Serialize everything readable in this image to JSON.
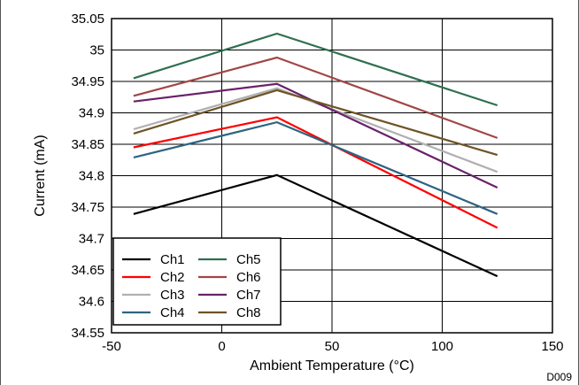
{
  "chart_data": {
    "type": "line",
    "xlabel": "Ambient Temperature (°C)",
    "ylabel": "Current (mA)",
    "xlim": [
      -50,
      150
    ],
    "ylim": [
      34.55,
      35.05
    ],
    "xticks": [
      -50,
      0,
      50,
      100,
      150
    ],
    "xtick_labels": [
      "-50",
      "0",
      "50",
      "100",
      "150"
    ],
    "yticks": [
      34.55,
      34.6,
      34.65,
      34.7,
      34.75,
      34.8,
      34.85,
      34.9,
      34.95,
      35,
      35.05
    ],
    "ytick_labels": [
      "34.55",
      "34.6",
      "34.65",
      "34.7",
      "34.75",
      "34.8",
      "34.85",
      "34.9",
      "34.95",
      "35",
      "35.05"
    ],
    "grid": true,
    "legend_position": "bottom-left",
    "x": [
      -40,
      25,
      125
    ],
    "series": [
      {
        "name": "Ch1",
        "color": "#000000",
        "values": [
          34.739,
          34.801,
          34.64
        ]
      },
      {
        "name": "Ch2",
        "color": "#ff0000",
        "values": [
          34.845,
          34.893,
          34.717
        ]
      },
      {
        "name": "Ch3",
        "color": "#b0b0b0",
        "values": [
          34.874,
          34.939,
          34.806
        ]
      },
      {
        "name": "Ch4",
        "color": "#2e6480",
        "values": [
          34.829,
          34.885,
          34.739
        ]
      },
      {
        "name": "Ch5",
        "color": "#2e7050",
        "values": [
          34.955,
          35.026,
          34.912
        ]
      },
      {
        "name": "Ch6",
        "color": "#a04646",
        "values": [
          34.927,
          34.988,
          34.86
        ]
      },
      {
        "name": "Ch7",
        "color": "#68226a",
        "values": [
          34.918,
          34.946,
          34.781
        ]
      },
      {
        "name": "Ch8",
        "color": "#6e5426",
        "values": [
          34.867,
          34.936,
          34.833
        ]
      }
    ],
    "footnote": "D009"
  }
}
